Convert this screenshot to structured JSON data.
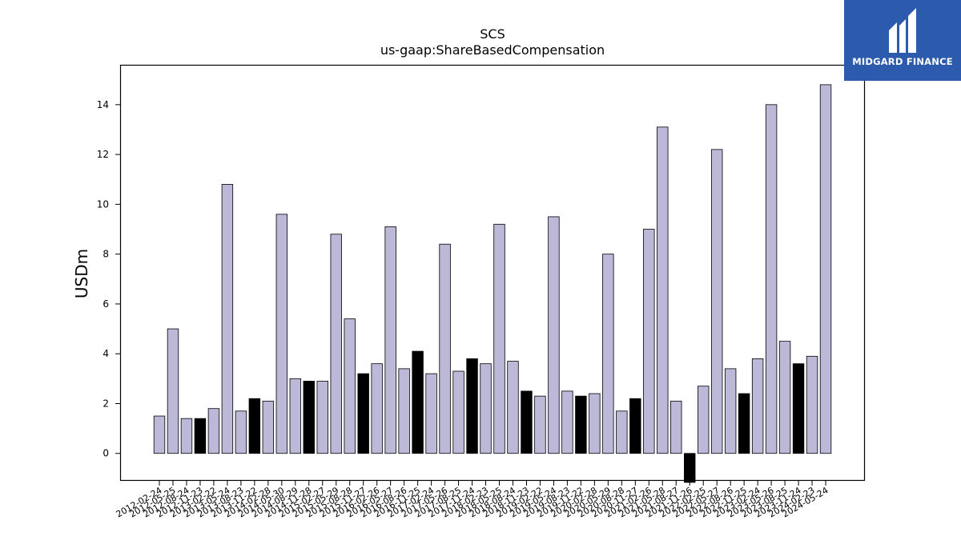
{
  "chart_data": {
    "type": "bar",
    "title": "SCS",
    "subtitle": "us-gaap:ShareBasedCompensation",
    "xlabel": "",
    "ylabel": "USDm",
    "ylim": [
      -1.1,
      15.6
    ],
    "yticks": [
      0,
      2,
      4,
      6,
      8,
      10,
      12,
      14
    ],
    "grid": false,
    "categories": [
      "2012-02-24",
      "2012-05-25",
      "2012-08-24",
      "2012-11-23",
      "2013-02-22",
      "2013-05-24",
      "2013-08-23",
      "2013-11-22",
      "2014-02-28",
      "2014-05-30",
      "2014-08-29",
      "2014-11-28",
      "2015-02-27",
      "2015-05-29",
      "2015-08-28",
      "2015-11-27",
      "2016-02-26",
      "2016-05-27",
      "2016-08-26",
      "2016-11-25",
      "2017-02-24",
      "2017-05-26",
      "2017-08-25",
      "2017-11-24",
      "2018-02-23",
      "2018-05-25",
      "2018-08-24",
      "2018-11-23",
      "2019-02-22",
      "2019-05-24",
      "2019-08-23",
      "2019-11-22",
      "2020-02-28",
      "2020-05-29",
      "2020-08-28",
      "2020-11-27",
      "2021-02-26",
      "2021-05-28",
      "2021-08-27",
      "2021-11-26",
      "2022-02-25",
      "2022-05-27",
      "2022-08-26",
      "2022-11-25",
      "2023-02-24",
      "2023-05-26",
      "2023-08-25",
      "2023-11-24",
      "2024-02-23",
      "2024-05-24"
    ],
    "values": [
      1.5,
      5.0,
      1.4,
      1.4,
      1.8,
      10.8,
      1.7,
      2.2,
      2.1,
      9.6,
      3.0,
      2.9,
      2.9,
      8.8,
      5.4,
      3.2,
      3.6,
      9.1,
      3.4,
      4.1,
      3.2,
      8.4,
      3.3,
      3.8,
      3.6,
      9.2,
      3.7,
      2.5,
      2.3,
      9.5,
      2.5,
      2.3,
      2.4,
      8.0,
      1.7,
      2.2,
      9.0,
      13.1,
      2.1,
      -1.2,
      2.7,
      12.2,
      3.4,
      2.4,
      3.8,
      14.0,
      4.5,
      3.6,
      3.9,
      14.8
    ],
    "highlight": [
      false,
      false,
      false,
      true,
      false,
      false,
      false,
      true,
      false,
      false,
      false,
      true,
      false,
      false,
      false,
      true,
      false,
      false,
      false,
      true,
      false,
      false,
      false,
      true,
      false,
      false,
      false,
      true,
      false,
      false,
      false,
      true,
      false,
      false,
      false,
      true,
      false,
      false,
      false,
      true,
      false,
      false,
      false,
      true,
      false,
      false,
      false,
      true,
      false,
      false
    ],
    "colors": {
      "bar": "#bcb8d8",
      "highlight_bar": "#000000",
      "edge": "#000000"
    }
  },
  "logo": {
    "text": "MIDGARD FINANCE",
    "background": "#2c5aad"
  }
}
